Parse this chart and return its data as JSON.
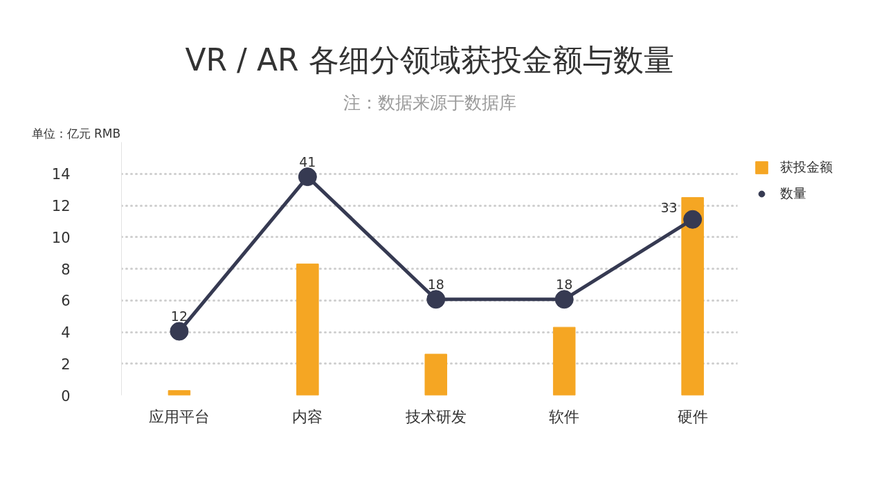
{
  "chart_data": {
    "type": "bar",
    "title": "VR / AR 各细分领域获投金额与数量",
    "subtitle": "注：数据来源于数据库",
    "ylabel": "单位：亿元 RMB",
    "categories": [
      "应用平台",
      "内容",
      "技术研发",
      "软件",
      "硬件"
    ],
    "series": [
      {
        "name": "获投金额",
        "color": "#f5a623",
        "values": [
          0.3,
          8.3,
          2.6,
          4.3,
          12.5
        ]
      },
      {
        "name": "数量",
        "type": "line",
        "axis": "y2",
        "color": "#363a52",
        "marker": "circle",
        "line_style": "solid",
        "values": [
          12,
          41,
          18,
          18,
          33
        ],
        "value_labels": [
          "12",
          "41",
          "18",
          "18",
          "33"
        ]
      }
    ],
    "ylim": [
      0,
      16
    ],
    "yticks": [
      0,
      2,
      4,
      6,
      8,
      10,
      12,
      14
    ],
    "grid": "y",
    "legend": "top right"
  }
}
